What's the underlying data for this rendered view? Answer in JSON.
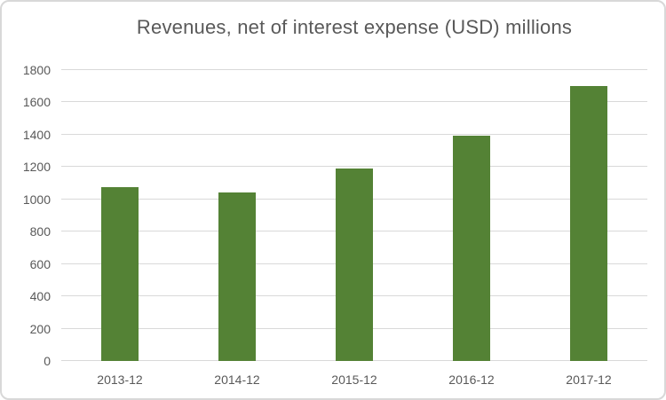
{
  "chart_data": {
    "type": "bar",
    "title": "Revenues, net of interest expense (USD) millions",
    "categories": [
      "2013-12",
      "2014-12",
      "2015-12",
      "2016-12",
      "2017-12"
    ],
    "values": [
      1075,
      1045,
      1190,
      1395,
      1700
    ],
    "xlabel": "",
    "ylabel": "",
    "ylim": [
      0,
      1800
    ],
    "yticks": [
      0,
      200,
      400,
      600,
      800,
      1000,
      1200,
      1400,
      1600,
      1800
    ],
    "grid": "horizontal",
    "legend": "none",
    "bar_color": "#548235",
    "gridline_color": "#d9d9d9",
    "text_color": "#595959",
    "background_color": "#ffffff",
    "border_color": "#d8d8d8"
  }
}
